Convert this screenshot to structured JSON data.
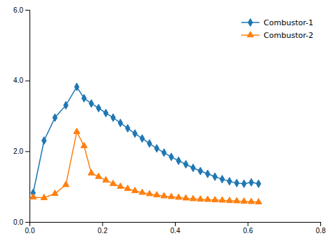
{
  "chart_data": {
    "type": "line",
    "x": [
      0.01,
      0.04,
      0.07,
      0.1,
      0.13,
      0.15,
      0.17,
      0.19,
      0.21,
      0.23,
      0.25,
      0.27,
      0.29,
      0.31,
      0.33,
      0.35,
      0.37,
      0.39,
      0.41,
      0.43,
      0.45,
      0.47,
      0.49,
      0.51,
      0.53,
      0.55,
      0.57,
      0.59,
      0.61,
      0.63
    ],
    "series": [
      {
        "name": "Combustor-1",
        "marker": "diamond",
        "values": [
          0.82,
          2.3,
          2.95,
          3.3,
          3.82,
          3.5,
          3.35,
          3.22,
          3.08,
          2.95,
          2.8,
          2.65,
          2.5,
          2.36,
          2.22,
          2.08,
          1.96,
          1.84,
          1.73,
          1.63,
          1.53,
          1.44,
          1.36,
          1.28,
          1.21,
          1.15,
          1.1,
          1.08,
          1.12,
          1.08
        ]
      },
      {
        "name": "Combustor-2",
        "marker": "triangle",
        "values": [
          0.7,
          0.68,
          0.8,
          1.05,
          2.55,
          2.15,
          1.38,
          1.28,
          1.18,
          1.08,
          1.0,
          0.94,
          0.88,
          0.83,
          0.79,
          0.76,
          0.73,
          0.71,
          0.69,
          0.67,
          0.65,
          0.64,
          0.63,
          0.62,
          0.61,
          0.6,
          0.59,
          0.58,
          0.57,
          0.56
        ]
      }
    ],
    "xlim": [
      0.0,
      0.8
    ],
    "ylim": [
      0.0,
      6.0
    ],
    "xticks": [
      {
        "value": 0.0,
        "label": "0.0"
      },
      0.2,
      0.4,
      0.6,
      0.8
    ],
    "yticks": [
      {
        "value": 0.0,
        "label": "0.0"
      },
      {
        "value": 2.0,
        "label": "2.0"
      },
      {
        "value": 4.0,
        "label": "4.0"
      },
      {
        "value": 6.0,
        "label": "6.0"
      }
    ],
    "legend": "upper right",
    "grid": false
  }
}
